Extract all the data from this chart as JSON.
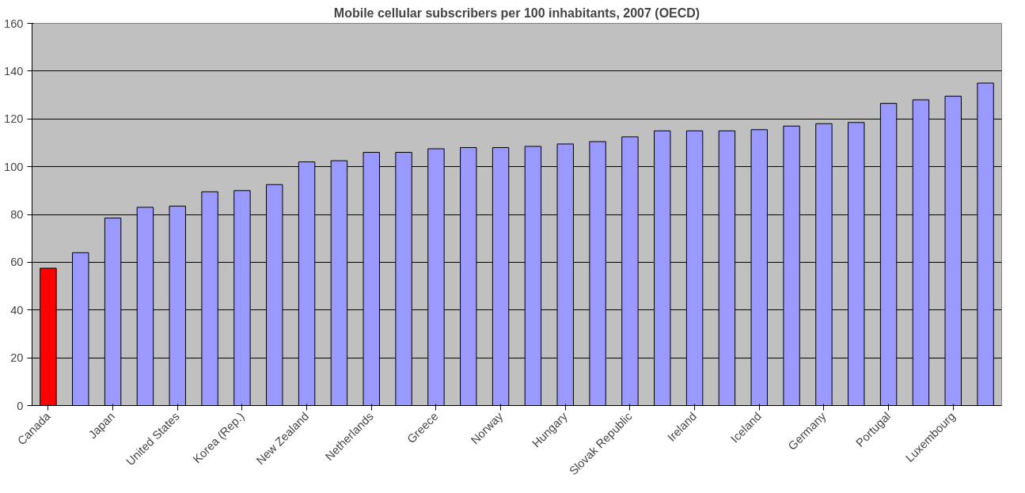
{
  "chart_data": {
    "type": "bar",
    "title": "Mobile cellular subscribers per 100 inhabitants, 2007 (OECD)",
    "categories": [
      "Canada",
      null,
      "Japan",
      null,
      "United States",
      null,
      "Korea (Rep.)",
      null,
      "New Zealand",
      null,
      "Netherlands",
      null,
      "Greece",
      null,
      "Norway",
      null,
      "Hungary",
      null,
      "Slovak Republic",
      null,
      "Ireland",
      null,
      "Iceland",
      null,
      "Germany",
      null,
      "Portugal",
      null,
      "Luxembourg",
      null
    ],
    "values": [
      57.5,
      64,
      78.5,
      83,
      83.5,
      89.5,
      90,
      92.5,
      102,
      102.5,
      106,
      106,
      107.5,
      108,
      108,
      108.5,
      109.5,
      110.5,
      112.5,
      115,
      115,
      115,
      115.5,
      117,
      118,
      118.5,
      126.5,
      128,
      129.5,
      135
    ],
    "colors": [
      "#ff0000",
      "#9999ff",
      "#9999ff",
      "#9999ff",
      "#9999ff",
      "#9999ff",
      "#9999ff",
      "#9999ff",
      "#9999ff",
      "#9999ff",
      "#9999ff",
      "#9999ff",
      "#9999ff",
      "#9999ff",
      "#9999ff",
      "#9999ff",
      "#9999ff",
      "#9999ff",
      "#9999ff",
      "#9999ff",
      "#9999ff",
      "#9999ff",
      "#9999ff",
      "#9999ff",
      "#9999ff",
      "#9999ff",
      "#9999ff",
      "#9999ff",
      "#9999ff",
      "#9999ff"
    ],
    "ylim": [
      0,
      160
    ],
    "yticks": [
      0,
      20,
      40,
      60,
      80,
      100,
      120,
      140,
      160
    ],
    "grid": "y"
  }
}
